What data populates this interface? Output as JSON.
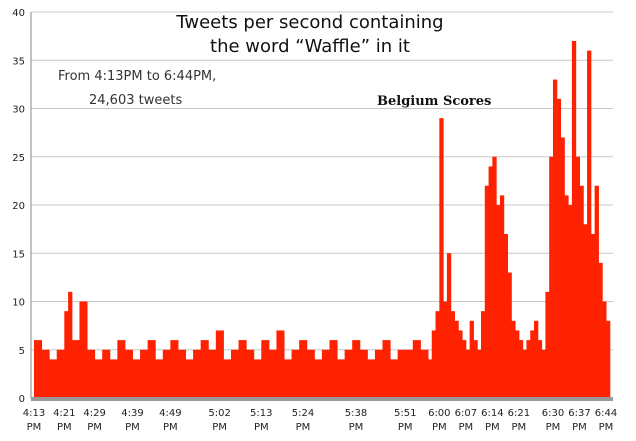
{
  "chart_data": {
    "type": "bar",
    "title_lines": [
      "Tweets per second containing",
      "the word “Waffle” in it"
    ],
    "subtitle_lines": [
      "From 4:13PM to 6:44PM,",
      "24,603 tweets"
    ],
    "annotation": "Belgium Scores",
    "xlabel": "",
    "ylabel": "",
    "ylim": [
      0,
      40
    ],
    "y_ticks": [
      "0",
      "5",
      "10",
      "15",
      "20",
      "25",
      "30",
      "35",
      "40"
    ],
    "grid": true,
    "x_ticks": [
      {
        "t1": "4:13",
        "t2": "PM",
        "minute": 0
      },
      {
        "t1": "4:21",
        "t2": "PM",
        "minute": 8
      },
      {
        "t1": "4:29",
        "t2": "PM",
        "minute": 16
      },
      {
        "t1": "4:39",
        "t2": "PM",
        "minute": 26
      },
      {
        "t1": "4:49",
        "t2": "PM",
        "minute": 36
      },
      {
        "t1": "5:02",
        "t2": "PM",
        "minute": 49
      },
      {
        "t1": "5:13",
        "t2": "PM",
        "minute": 60
      },
      {
        "t1": "5:24",
        "t2": "PM",
        "minute": 71
      },
      {
        "t1": "5:38",
        "t2": "PM",
        "minute": 85
      },
      {
        "t1": "5:51",
        "t2": "PM",
        "minute": 98
      },
      {
        "t1": "6:00",
        "t2": "PM",
        "minute": 107
      },
      {
        "t1": "6:07",
        "t2": "PM",
        "minute": 114
      },
      {
        "t1": "6:14",
        "t2": "PM",
        "minute": 121
      },
      {
        "t1": "6:21",
        "t2": "PM",
        "minute": 128
      },
      {
        "t1": "6:30",
        "t2": "PM",
        "minute": 137
      },
      {
        "t1": "6:37",
        "t2": "PM",
        "minute": 144
      },
      {
        "t1": "6:44",
        "t2": "PM",
        "minute": 151
      }
    ],
    "series_color": "#ff2200",
    "series": [
      {
        "x_minutes": [
          0,
          2,
          4,
          6,
          8,
          9,
          10,
          12,
          14,
          16,
          18,
          20,
          22,
          24,
          26,
          28,
          30,
          32,
          34,
          36,
          38,
          40,
          42,
          44,
          46,
          48,
          50,
          52,
          54,
          56,
          58,
          60,
          62,
          64,
          66,
          68,
          70,
          72,
          74,
          76,
          78,
          80,
          82,
          84,
          86,
          88,
          90,
          92,
          94,
          96,
          98,
          100,
          102,
          104,
          105,
          106,
          107,
          108,
          109,
          110,
          111,
          112,
          113,
          114,
          115,
          116,
          117,
          118,
          119,
          120,
          121,
          122,
          123,
          124,
          125,
          126,
          127,
          128,
          129,
          130,
          131,
          132,
          133,
          134,
          135,
          136,
          137,
          138,
          139,
          140,
          141,
          142,
          143,
          144,
          145,
          146,
          147,
          148,
          149,
          150,
          151
        ],
        "values": [
          6,
          5,
          4,
          5,
          9,
          11,
          6,
          10,
          5,
          4,
          5,
          4,
          6,
          5,
          4,
          5,
          6,
          4,
          5,
          6,
          5,
          4,
          5,
          6,
          5,
          7,
          4,
          5,
          6,
          5,
          4,
          6,
          5,
          7,
          4,
          5,
          6,
          5,
          4,
          5,
          6,
          4,
          5,
          6,
          5,
          4,
          5,
          6,
          4,
          5,
          5,
          6,
          5,
          4,
          7,
          9,
          29,
          10,
          15,
          9,
          8,
          7,
          6,
          5,
          8,
          6,
          5,
          9,
          22,
          24,
          25,
          20,
          21,
          17,
          13,
          8,
          7,
          6,
          5,
          6,
          7,
          8,
          6,
          5,
          11,
          25,
          33,
          31,
          27,
          21,
          20,
          37,
          25,
          22,
          18,
          36,
          17,
          22,
          14,
          10,
          8
        ]
      }
    ]
  }
}
